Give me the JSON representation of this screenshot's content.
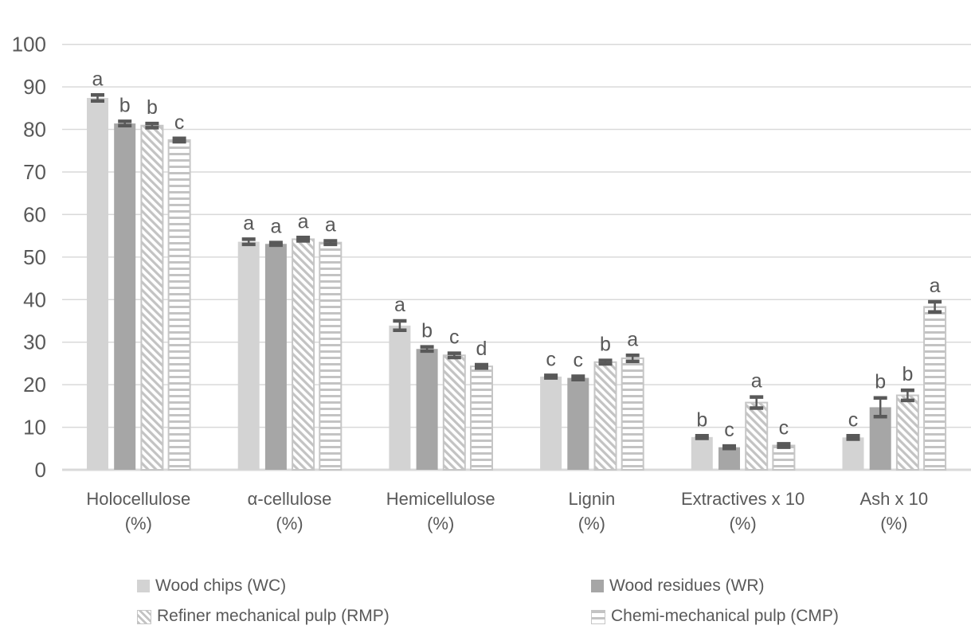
{
  "chart_data": {
    "type": "bar",
    "title": "",
    "xlabel": "",
    "ylabel": "",
    "ylim": [
      0,
      100
    ],
    "yticks": [
      0,
      10,
      20,
      30,
      40,
      50,
      60,
      70,
      80,
      90,
      100
    ],
    "grid": true,
    "legend_position": "bottom",
    "categories": [
      [
        "Holocellulose",
        "(%)"
      ],
      [
        "α-cellulose",
        "(%)"
      ],
      [
        "Hemicellulose",
        "(%)"
      ],
      [
        "Lignin",
        "(%)"
      ],
      [
        "Extractives x 10",
        "(%)"
      ],
      [
        "Ash x 10",
        "(%)"
      ]
    ],
    "series": [
      {
        "name": "Wood chips (WC)",
        "style": "solid-light",
        "fill": "#d3d3d3",
        "values": [
          87.4,
          53.6,
          33.9,
          21.9,
          7.7,
          7.6
        ],
        "errors": [
          0.7,
          0.6,
          1.1,
          0.3,
          0.3,
          0.4
        ],
        "letters": [
          "a",
          "a",
          "a",
          "c",
          "b",
          "c"
        ]
      },
      {
        "name": "Wood residues (WR)",
        "style": "solid-dark",
        "fill": "#a6a6a6",
        "values": [
          81.4,
          53.1,
          28.4,
          21.6,
          5.3,
          14.7
        ],
        "errors": [
          0.5,
          0.3,
          0.5,
          0.4,
          0.3,
          2.2
        ],
        "letters": [
          "b",
          "a",
          "b",
          "c",
          "c",
          "b"
        ]
      },
      {
        "name": "Refiner mechanical pulp (RMP)",
        "style": "diagonal-hatch",
        "fill": "#c3c3c3",
        "values": [
          80.9,
          54.2,
          26.9,
          25.3,
          15.8,
          17.5
        ],
        "errors": [
          0.5,
          0.4,
          0.5,
          0.4,
          1.3,
          1.2
        ],
        "letters": [
          "b",
          "a",
          "c",
          "b",
          "a",
          "b"
        ]
      },
      {
        "name": "Chemi-mechanical pulp (CMP)",
        "style": "horizontal-lines",
        "fill": "#c3c3c3",
        "values": [
          77.5,
          53.4,
          24.3,
          26.2,
          5.7,
          38.3
        ],
        "errors": [
          0.4,
          0.4,
          0.4,
          0.7,
          0.4,
          1.2
        ],
        "letters": [
          "c",
          "a",
          "d",
          "a",
          "c",
          "a"
        ]
      }
    ],
    "colors": {
      "grid": "#d9d9d9",
      "axis_line": "#d9d9d9",
      "error_bar": "#595959",
      "tick_text": "#595959",
      "letter_text": "#595959",
      "legend_text": "#595959",
      "pattern_stroke": "#c3c3c3",
      "pattern_border": "#c6c6c6",
      "background": "#ffffff"
    }
  }
}
